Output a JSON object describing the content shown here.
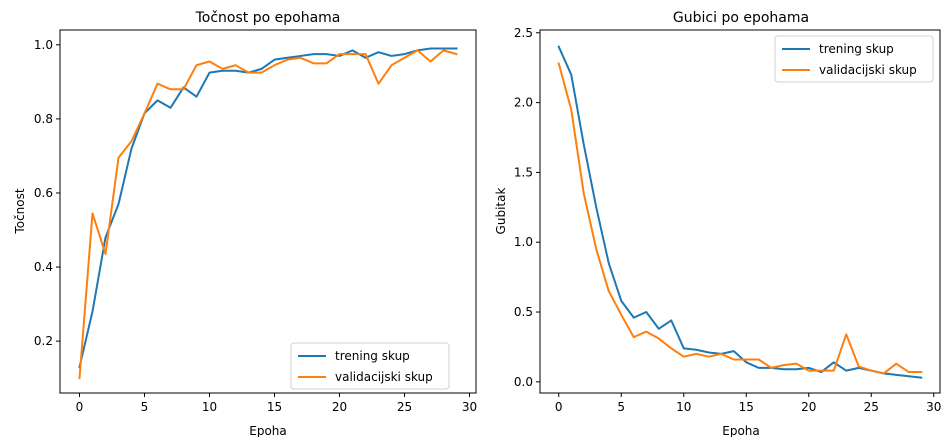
{
  "chart_data": [
    {
      "type": "line",
      "title": "Točnost po epohama",
      "xlabel": "Epoha",
      "ylabel": "Točnost",
      "xlim": [
        -1.5,
        30.5
      ],
      "ylim": [
        0.06,
        1.04
      ],
      "xticks": [
        0,
        5,
        10,
        15,
        20,
        25,
        30
      ],
      "yticks": [
        0.2,
        0.4,
        0.6,
        0.8,
        1.0
      ],
      "yticklabels": [
        "0.2",
        "0.4",
        "0.6",
        "0.8",
        "1.0"
      ],
      "legend": "lower-right",
      "grid": false,
      "x": [
        0,
        1,
        2,
        3,
        4,
        5,
        6,
        7,
        8,
        9,
        10,
        11,
        12,
        13,
        14,
        15,
        16,
        17,
        18,
        19,
        20,
        21,
        22,
        23,
        24,
        25,
        26,
        27,
        28,
        29
      ],
      "series": [
        {
          "name": "trening skup",
          "color": "#1f77b4",
          "values": [
            0.13,
            0.28,
            0.48,
            0.57,
            0.72,
            0.815,
            0.85,
            0.83,
            0.885,
            0.86,
            0.925,
            0.93,
            0.93,
            0.925,
            0.935,
            0.96,
            0.965,
            0.97,
            0.975,
            0.975,
            0.97,
            0.985,
            0.965,
            0.98,
            0.97,
            0.975,
            0.985,
            0.99,
            0.99,
            0.99
          ]
        },
        {
          "name": "validacijski skup",
          "color": "#ff7f0e",
          "values": [
            0.1,
            0.545,
            0.435,
            0.695,
            0.74,
            0.815,
            0.895,
            0.88,
            0.88,
            0.945,
            0.955,
            0.935,
            0.945,
            0.925,
            0.925,
            0.945,
            0.96,
            0.965,
            0.95,
            0.95,
            0.975,
            0.975,
            0.975,
            0.895,
            0.945,
            0.965,
            0.985,
            0.955,
            0.985,
            0.975
          ]
        }
      ]
    },
    {
      "type": "line",
      "title": "Gubici po epohama",
      "xlabel": "Epoha",
      "ylabel": "Gubitak",
      "xlim": [
        -1.5,
        30.5
      ],
      "ylim": [
        -0.08,
        2.52
      ],
      "xticks": [
        0,
        5,
        10,
        15,
        20,
        25,
        30
      ],
      "yticks": [
        0.0,
        0.5,
        1.0,
        1.5,
        2.0,
        2.5
      ],
      "yticklabels": [
        "0.0",
        "0.5",
        "1.0",
        "1.5",
        "2.0",
        "2.5"
      ],
      "legend": "top-right",
      "grid": false,
      "x": [
        0,
        1,
        2,
        3,
        4,
        5,
        6,
        7,
        8,
        9,
        10,
        11,
        12,
        13,
        14,
        15,
        16,
        17,
        18,
        19,
        20,
        21,
        22,
        23,
        24,
        25,
        26,
        27,
        28,
        29
      ],
      "series": [
        {
          "name": "trening skup",
          "color": "#1f77b4",
          "values": [
            2.4,
            2.2,
            1.7,
            1.25,
            0.85,
            0.58,
            0.46,
            0.5,
            0.38,
            0.44,
            0.24,
            0.23,
            0.21,
            0.2,
            0.22,
            0.14,
            0.1,
            0.1,
            0.09,
            0.09,
            0.1,
            0.07,
            0.14,
            0.08,
            0.1,
            0.08,
            0.06,
            0.05,
            0.04,
            0.03
          ]
        },
        {
          "name": "validacijski skup",
          "color": "#ff7f0e",
          "values": [
            2.28,
            1.95,
            1.35,
            0.95,
            0.65,
            0.48,
            0.32,
            0.36,
            0.31,
            0.24,
            0.18,
            0.2,
            0.18,
            0.2,
            0.16,
            0.16,
            0.16,
            0.1,
            0.12,
            0.13,
            0.08,
            0.08,
            0.08,
            0.34,
            0.11,
            0.08,
            0.06,
            0.13,
            0.07,
            0.07
          ]
        }
      ]
    }
  ]
}
